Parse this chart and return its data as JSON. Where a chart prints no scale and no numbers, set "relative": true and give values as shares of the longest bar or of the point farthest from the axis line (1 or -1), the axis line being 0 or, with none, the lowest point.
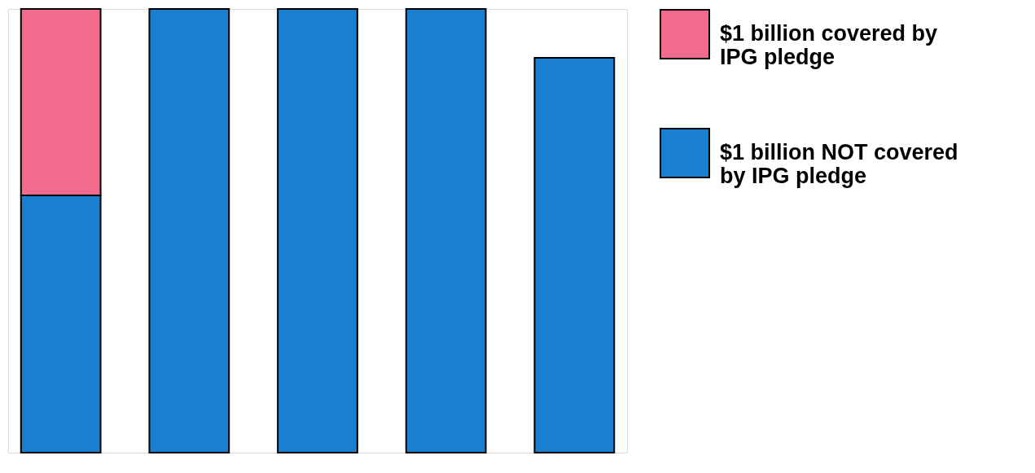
{
  "chart_data": {
    "type": "bar",
    "stacked": true,
    "relative": true,
    "categories": [
      null,
      null,
      null,
      null,
      null
    ],
    "series": [
      {
        "name": "$1 billion  NOT covered by IPG pledge",
        "color": "#1a7fcf",
        "values": [
          0.58,
          1,
          1,
          1,
          0.89
        ]
      },
      {
        "name": "$1 billion covered by IPG pledge",
        "color": "#f46b8e",
        "values": [
          0.42,
          null,
          null,
          null,
          null
        ]
      }
    ],
    "legend": "right",
    "grid": false
  }
}
